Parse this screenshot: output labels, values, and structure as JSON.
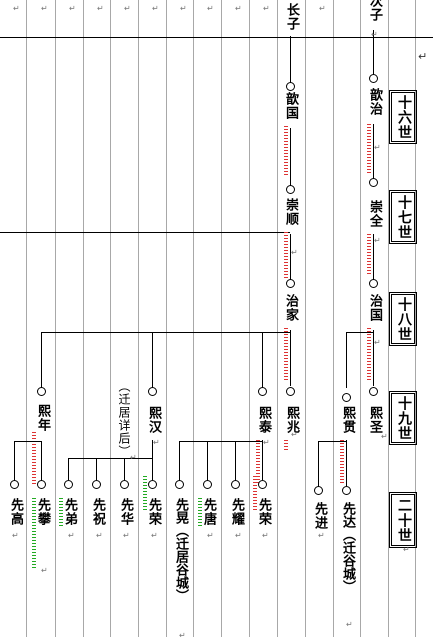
{
  "generations": {
    "g16": "十六世",
    "g17": "十七世",
    "g18": "十八世",
    "g19": "十九世",
    "g20": "二十世"
  },
  "names": {
    "top_left": "长子",
    "top_right": "次子",
    "qinguo": "歆国",
    "qinzhi": "歆治",
    "chongshun": "崇顺",
    "chongquan": "崇全",
    "zhijia": "治家",
    "zhiguo": "治国",
    "xinian": "熙年",
    "qianju_note": "（迁居详后）",
    "xihan": "熙汉",
    "xitai": "熙泰",
    "xizhao": "熙兆",
    "xiguan": "熙贯",
    "xisheng": "熙圣",
    "xiangao": "先高",
    "xianpan": "先攀",
    "xiandi": "先弟",
    "xianzhu": "先祝",
    "xianhua": "先华",
    "xianrong1": "先荣",
    "xianhuang": "先晃（迁居谷城）",
    "xiantang": "先唐",
    "xianyao": "先耀",
    "xianrong2": "先荣",
    "xianjin": "先进",
    "xianda": "先达（迁谷城）"
  },
  "marks": {
    "return": "↵",
    "edge": "↵"
  }
}
